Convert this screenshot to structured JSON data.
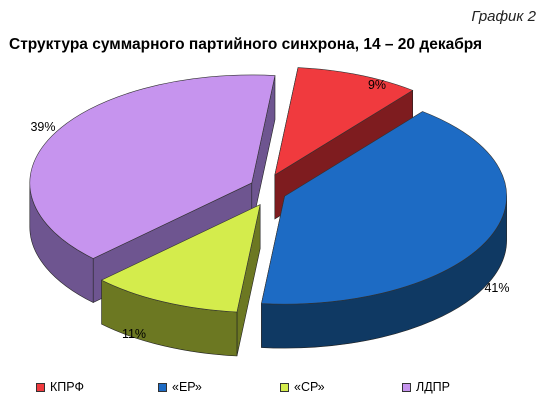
{
  "caption": "График 2",
  "chart_data": {
    "type": "pie",
    "title": "Структура суммарного партийного синхрона, 14 – 20 декабря",
    "slices": [
      {
        "name": "КПРФ",
        "value": 9,
        "label": "9%",
        "color": "#f03a3e",
        "side_color": "#7e1c1f"
      },
      {
        "name": "«ЕР»",
        "value": 41,
        "label": "41%",
        "color": "#1d6bc4",
        "side_color": "#0f3963"
      },
      {
        "name": "«СР»",
        "value": 11,
        "label": "11%",
        "color": "#d4ec4c",
        "side_color": "#6c7822"
      },
      {
        "name": "ЛДПР",
        "value": 39,
        "label": "39%",
        "color": "#c694ee",
        "side_color": "#6e5590"
      }
    ],
    "legend_position": "bottom"
  }
}
